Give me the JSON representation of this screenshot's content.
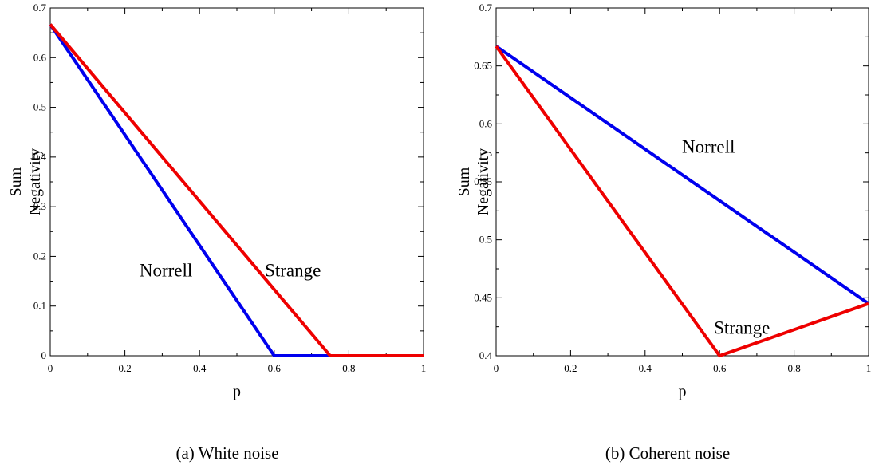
{
  "chart_data": [
    {
      "type": "line",
      "caption": "(a)  White noise",
      "xlabel": "p",
      "ylabel": [
        "Sum",
        "Negativity"
      ],
      "xlim": [
        0,
        1
      ],
      "ylim": [
        0,
        0.7
      ],
      "xticks": [
        "0",
        "0.2",
        "0.4",
        "0.6",
        "0.8",
        "1"
      ],
      "yticks": [
        "0",
        "0.1",
        "0.2",
        "0.3",
        "0.4",
        "0.5",
        "0.6",
        "0.7"
      ],
      "series": [
        {
          "name": "Norrell",
          "color": "#0000ee",
          "x": [
            0,
            0.6,
            1
          ],
          "y": [
            0.667,
            0,
            0
          ]
        },
        {
          "name": "Strange",
          "color": "#ee0000",
          "x": [
            0,
            0.75,
            1
          ],
          "y": [
            0.667,
            0,
            0
          ]
        }
      ],
      "annotations": [
        {
          "text": "Norrell",
          "x": 0.31,
          "y": 0.16
        },
        {
          "text": "Strange",
          "x": 0.65,
          "y": 0.16
        }
      ],
      "grid": false
    },
    {
      "type": "line",
      "caption": "(b)  Coherent noise",
      "xlabel": "p",
      "ylabel": [
        "Sum",
        "Negativity"
      ],
      "xlim": [
        0,
        1
      ],
      "ylim": [
        0.4,
        0.7
      ],
      "xticks": [
        "0",
        "0.2",
        "0.4",
        "0.6",
        "0.8",
        "1"
      ],
      "yticks": [
        "0.4",
        "0.45",
        "0.5",
        "0.55",
        "0.6",
        "0.65",
        "0.7"
      ],
      "series": [
        {
          "name": "Norrell",
          "color": "#0000ee",
          "x": [
            0,
            1
          ],
          "y": [
            0.667,
            0.445
          ]
        },
        {
          "name": "Strange",
          "color": "#ee0000",
          "x": [
            0,
            0.6,
            1
          ],
          "y": [
            0.667,
            0.4,
            0.445
          ]
        }
      ],
      "annotations": [
        {
          "text": "Norrell",
          "x": 0.57,
          "y": 0.575
        },
        {
          "text": "Strange",
          "x": 0.66,
          "y": 0.419
        }
      ],
      "grid": false
    }
  ]
}
